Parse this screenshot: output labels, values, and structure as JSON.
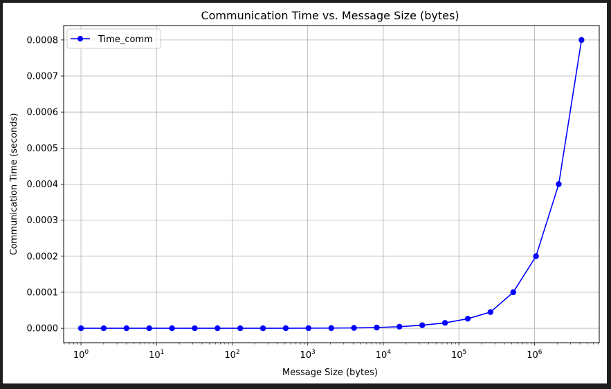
{
  "chart_data": {
    "type": "line",
    "title": "Communication Time vs. Message Size (bytes)",
    "xlabel": "Message Size (bytes)",
    "ylabel": "Communication Time (seconds)",
    "xscale": "log",
    "x_tick_labels": [
      {
        "value": 1,
        "base": "10",
        "exp": "0"
      },
      {
        "value": 10,
        "base": "10",
        "exp": "1"
      },
      {
        "value": 100,
        "base": "10",
        "exp": "2"
      },
      {
        "value": 1000,
        "base": "10",
        "exp": "3"
      },
      {
        "value": 10000,
        "base": "10",
        "exp": "4"
      },
      {
        "value": 100000,
        "base": "10",
        "exp": "5"
      },
      {
        "value": 1000000,
        "base": "10",
        "exp": "6"
      }
    ],
    "y_ticks": [
      0,
      0.0001,
      0.0002,
      0.0003,
      0.0004,
      0.0005,
      0.0006,
      0.0007,
      0.0008
    ],
    "y_tick_labels": [
      "0.0000",
      "0.0001",
      "0.0002",
      "0.0003",
      "0.0004",
      "0.0005",
      "0.0006",
      "0.0007",
      "0.0008"
    ],
    "xlim": [
      0.59,
      7200000
    ],
    "ylim": [
      -4e-05,
      0.00084
    ],
    "grid": true,
    "legend": "upper left",
    "series": [
      {
        "name": "Time_comm",
        "color": "#0000ff",
        "marker": "circle",
        "x": [
          1,
          2,
          4,
          8,
          16,
          32,
          64,
          128,
          256,
          512,
          1024,
          2048,
          4096,
          8192,
          16384,
          32768,
          65536,
          131072,
          262144,
          524288,
          1048576,
          2097152,
          4194304
        ],
        "y": [
          1e-07,
          1e-07,
          1e-07,
          1e-07,
          1e-07,
          1e-07,
          1e-07,
          1e-07,
          1e-07,
          2e-07,
          3e-07,
          5e-07,
          1e-06,
          2e-06,
          4.5e-06,
          8.5e-06,
          1.5e-05,
          2.65e-05,
          4.5e-05,
          0.0001,
          0.0002,
          0.0004,
          0.0008
        ]
      }
    ]
  }
}
